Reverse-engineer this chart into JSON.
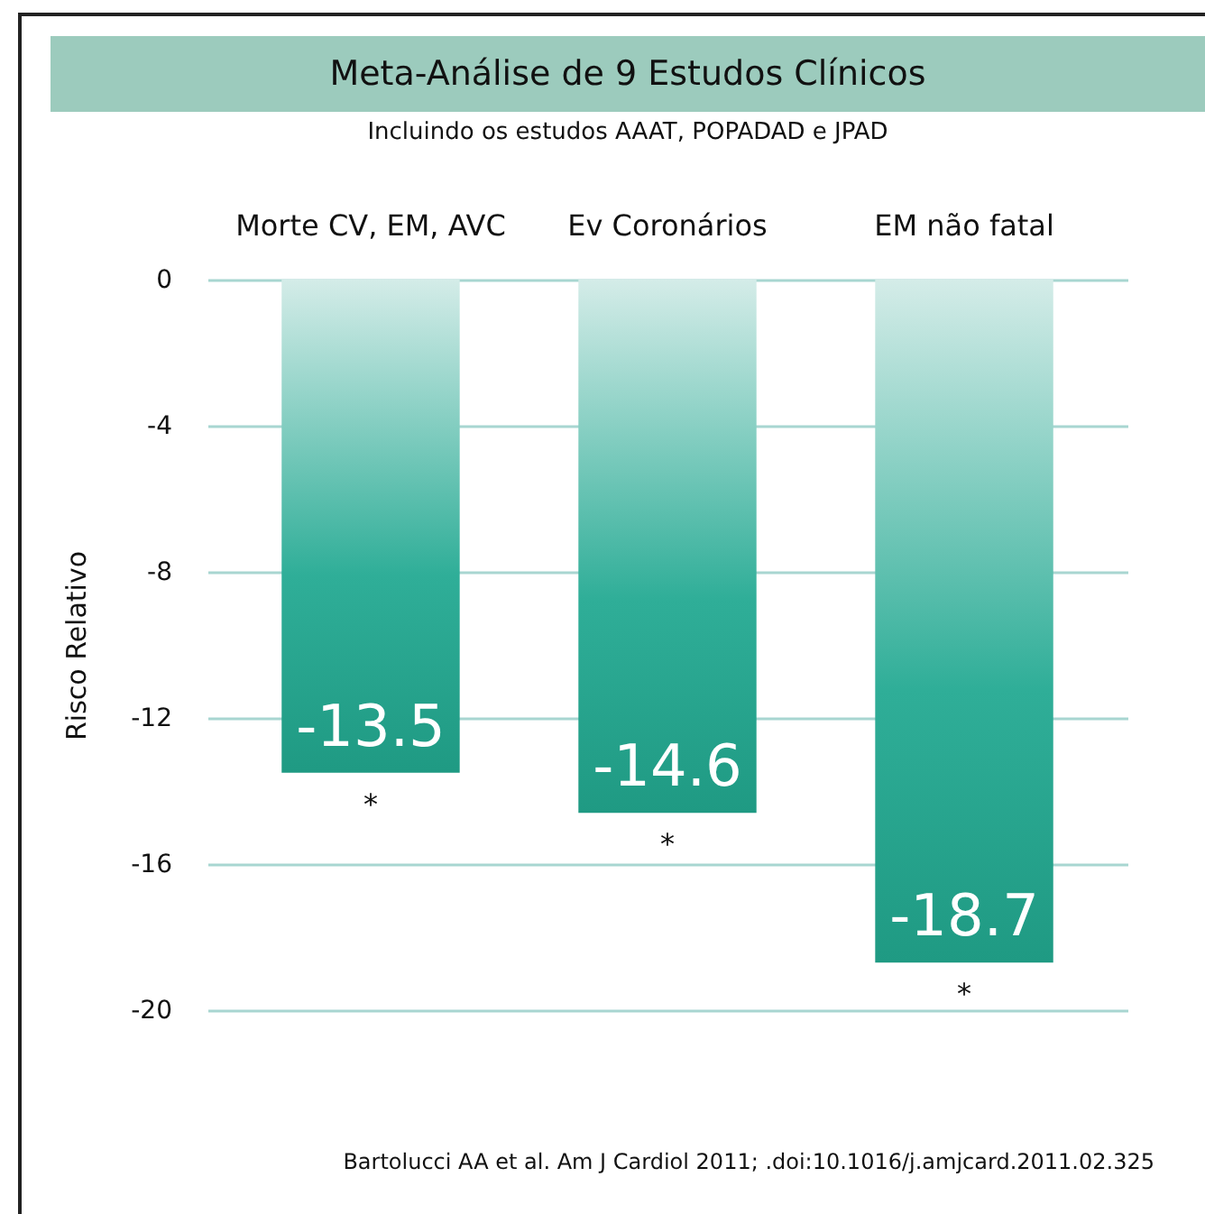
{
  "chart_data": {
    "type": "bar",
    "title": "Meta-Análise de 9 Estudos Clínicos",
    "subtitle": "Incluindo os estudos AAAT, POPADAD e JPAD",
    "ylabel": "Risco Relativo",
    "categories": [
      "Morte CV,\nEM, AVC",
      "Ev Coronários",
      "EM não fatal"
    ],
    "values": [
      -13.5,
      -14.6,
      -18.7
    ],
    "color": "#1f9a83",
    "data_labels": true,
    "ylim": [
      -20,
      0
    ],
    "yticks": [
      0,
      -4,
      -8,
      -12,
      -16,
      -20
    ],
    "grid": "y",
    "annotations": [
      {
        "text": "*",
        "x": "Morte CV,\nEM, AVC",
        "y": -13.5
      },
      {
        "text": "*",
        "x": "Ev Coronários",
        "y": -14.6
      },
      {
        "text": "*",
        "x": "EM não fatal",
        "y": -18.7
      },
      "Bartolucci AA et al. Am J Cardiol 2011; .doi:10.1016/j.amjcard.2011.02.325"
    ]
  }
}
